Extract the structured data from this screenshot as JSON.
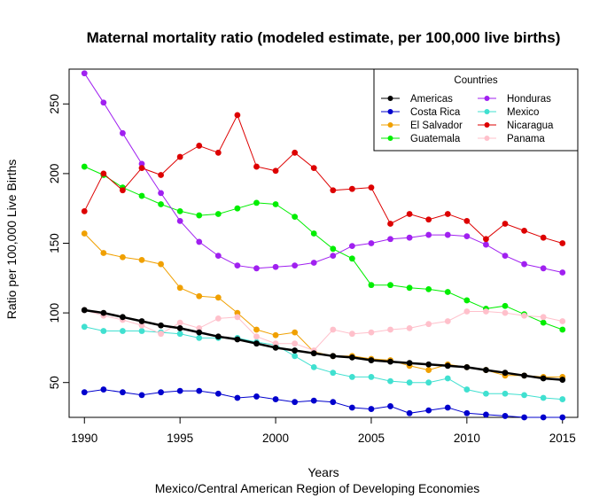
{
  "chart_data": {
    "type": "line",
    "title": "Maternal mortality ratio (modeled estimate, per 100,000 live births)",
    "xlabel": "Years",
    "subtitle": "Mexico/Central American Region of Developing Economies",
    "ylabel": "Ratio per 100,000 Live Births",
    "xlim": [
      1989.2,
      2015.8
    ],
    "ylim": [
      25,
      275
    ],
    "x_ticks": [
      1990,
      1995,
      2000,
      2005,
      2010,
      2015
    ],
    "y_ticks": [
      50,
      100,
      150,
      200,
      250
    ],
    "grid": false,
    "legend": {
      "title": "Countries",
      "position": "top-right",
      "columns": 2
    },
    "x": [
      1990,
      1991,
      1992,
      1993,
      1994,
      1995,
      1996,
      1997,
      1998,
      1999,
      2000,
      2001,
      2002,
      2003,
      2004,
      2005,
      2006,
      2007,
      2008,
      2009,
      2010,
      2011,
      2012,
      2013,
      2014,
      2015
    ],
    "series": [
      {
        "name": "Americas",
        "color": "#000000",
        "trend": true,
        "values": [
          102,
          100,
          97,
          94,
          91,
          89,
          86,
          83,
          81,
          78,
          75,
          73,
          71,
          69,
          68,
          66,
          65,
          64,
          63,
          62,
          61,
          59,
          57,
          55,
          53,
          52
        ]
      },
      {
        "name": "Costa Rica",
        "color": "#0000cd",
        "values": [
          43,
          45,
          43,
          41,
          43,
          44,
          44,
          42,
          39,
          40,
          38,
          36,
          37,
          36,
          32,
          31,
          33,
          28,
          30,
          32,
          28,
          27,
          26,
          25,
          25,
          25
        ]
      },
      {
        "name": "El Salvador",
        "color": "#f0a000",
        "values": [
          157,
          143,
          140,
          138,
          135,
          118,
          112,
          111,
          100,
          88,
          84,
          86,
          72,
          69,
          69,
          67,
          66,
          62,
          59,
          63,
          61,
          59,
          55,
          55,
          54,
          54
        ]
      },
      {
        "name": "Guatemala",
        "color": "#00ee00",
        "values": [
          205,
          199,
          190,
          184,
          178,
          173,
          170,
          171,
          175,
          179,
          178,
          169,
          157,
          146,
          139,
          120,
          120,
          118,
          117,
          115,
          109,
          103,
          105,
          99,
          93,
          88
        ]
      },
      {
        "name": "Honduras",
        "color": "#a020f0",
        "values": [
          272,
          251,
          229,
          207,
          186,
          166,
          151,
          141,
          134,
          132,
          133,
          134,
          136,
          141,
          148,
          150,
          153,
          154,
          156,
          156,
          155,
          149,
          141,
          135,
          132,
          129
        ]
      },
      {
        "name": "Mexico",
        "color": "#40e0d0",
        "values": [
          90,
          87,
          87,
          87,
          86,
          85,
          82,
          82,
          82,
          79,
          77,
          69,
          61,
          57,
          54,
          54,
          51,
          50,
          50,
          53,
          45,
          42,
          42,
          41,
          39,
          38
        ]
      },
      {
        "name": "Nicaragua",
        "color": "#dd0000",
        "values": [
          173,
          200,
          188,
          204,
          199,
          212,
          220,
          215,
          242,
          205,
          202,
          215,
          204,
          188,
          189,
          190,
          164,
          171,
          167,
          171,
          166,
          153,
          164,
          159,
          154,
          150
        ]
      },
      {
        "name": "Panama",
        "color": "#ffc0cb",
        "values": [
          102,
          98,
          95,
          91,
          85,
          93,
          89,
          96,
          97,
          83,
          78,
          78,
          73,
          88,
          85,
          86,
          88,
          89,
          92,
          94,
          101,
          101,
          100,
          98,
          97,
          94
        ]
      }
    ]
  }
}
